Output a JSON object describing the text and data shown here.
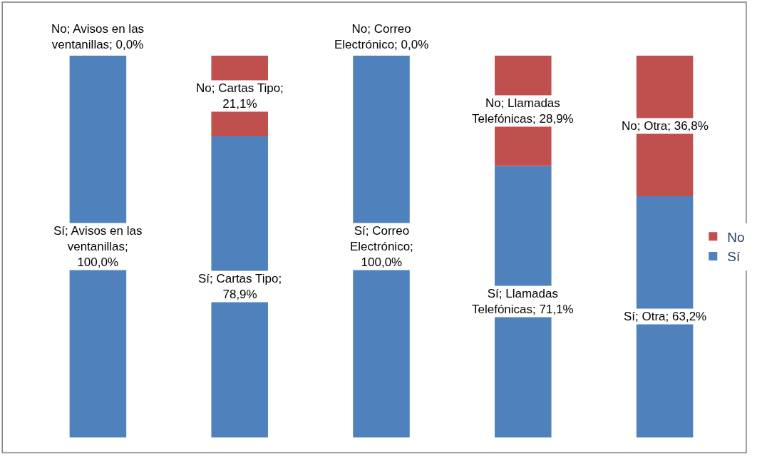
{
  "chart_data": {
    "type": "bar",
    "stacked": true,
    "categories": [
      null,
      null,
      null,
      null,
      null
    ],
    "ylim": [
      0,
      100
    ],
    "tick_labels": false,
    "legend": "right",
    "series": [
      {
        "name": "Sí",
        "color": "#4f81bd",
        "values": [
          100.0,
          78.9,
          100.0,
          71.1,
          63.2
        ],
        "value_labels": [
          "Sí; Avisos en las ventanillas; 100,0%",
          "Sí; Cartas Tipo; 78,9%",
          "Sí; Correo Electrónico; 100,0%",
          "Sí; Llamadas Telefónicas; 71,1%",
          "Sí; Otra; 63,2%"
        ]
      },
      {
        "name": "No",
        "color": "#c0504d",
        "values": [
          0.0,
          21.1,
          0.0,
          28.9,
          36.8
        ],
        "value_labels": [
          "No; Avisos en las ventanillas; 0,0%",
          "No; Cartas Tipo; 21,1%",
          "No; Correo Electrónico; 0,0%",
          "No; Llamadas Telefónicas; 28,9%",
          "No; Otra; 36,8%"
        ]
      }
    ]
  }
}
